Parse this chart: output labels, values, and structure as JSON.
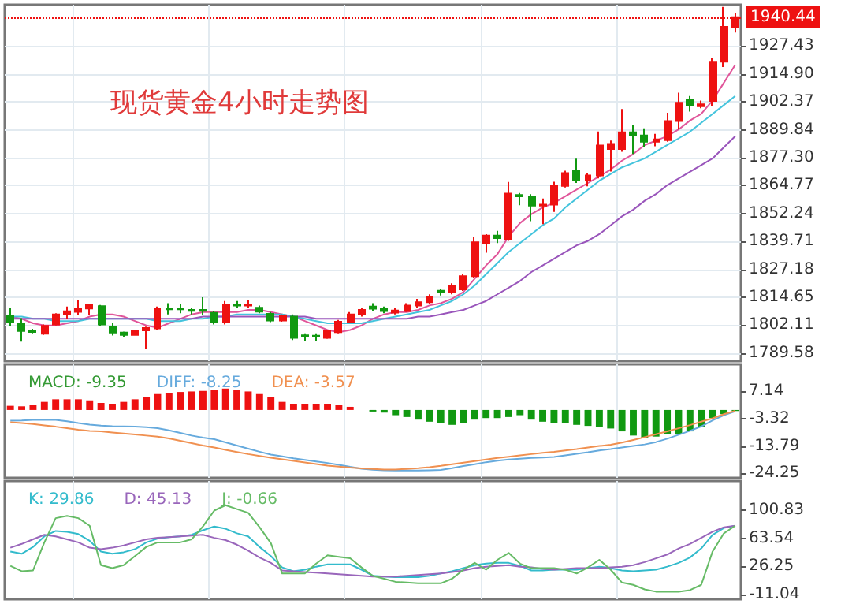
{
  "chart_data": [
    {
      "type": "candlestick",
      "title": "现货黄金4小时走势图",
      "categories": [
        null,
        null,
        null,
        null,
        null,
        null,
        null,
        null,
        null,
        null,
        null,
        null,
        null,
        null,
        null,
        null,
        null,
        null,
        null,
        null,
        null,
        null,
        null,
        null,
        null,
        null,
        null,
        null,
        null,
        null,
        null,
        null,
        null,
        null,
        null,
        null,
        null,
        null,
        null,
        null,
        null,
        null,
        null,
        null,
        null,
        null,
        null,
        null,
        null,
        null,
        null,
        null,
        null,
        null,
        null,
        null,
        null,
        null,
        null,
        null,
        null,
        null,
        null,
        null,
        null
      ],
      "ohlc": [
        [
          1806.5,
          1810.0,
          1801.8,
          1803.7
        ],
        [
          1803.0,
          1805.3,
          1794.8,
          1799.5
        ],
        [
          1799.7,
          1800.5,
          1798.5,
          1799.1
        ],
        [
          1798.3,
          1802.5,
          1797.8,
          1801.8
        ],
        [
          1802.5,
          1807.5,
          1802.0,
          1807.0
        ],
        [
          1807.0,
          1810.5,
          1805.0,
          1808.4
        ],
        [
          1808.1,
          1813.5,
          1806.5,
          1809.6
        ],
        [
          1809.6,
          1811.7,
          1806.5,
          1811.2
        ],
        [
          1810.7,
          1811.2,
          1801.8,
          1802.5
        ],
        [
          1801.3,
          1803.0,
          1797.5,
          1798.8
        ],
        [
          1798.8,
          1799.3,
          1797.0,
          1797.8
        ],
        [
          1797.8,
          1800.0,
          1797.5,
          1799.5
        ],
        [
          1799.8,
          1801.5,
          1791.3,
          1800.9
        ],
        [
          1800.7,
          1810.5,
          1800.0,
          1809.4
        ],
        [
          1809.6,
          1812.0,
          1807.0,
          1809.3
        ],
        [
          1809.5,
          1811.5,
          1807.5,
          1809.3
        ],
        [
          1809.0,
          1810.0,
          1807.0,
          1808.6
        ],
        [
          1809.0,
          1814.7,
          1806.5,
          1808.6
        ],
        [
          1807.7,
          1808.5,
          1802.5,
          1803.7
        ],
        [
          1803.7,
          1813.0,
          1802.5,
          1811.2
        ],
        [
          1811.5,
          1813.0,
          1810.0,
          1811.0
        ],
        [
          1811.0,
          1813.5,
          1810.0,
          1811.3
        ],
        [
          1810.0,
          1811.0,
          1807.5,
          1808.2
        ],
        [
          1807.2,
          1808.0,
          1803.5,
          1804.2
        ],
        [
          1804.2,
          1807.0,
          1803.7,
          1806.5
        ],
        [
          1806.0,
          1807.0,
          1795.5,
          1796.4
        ],
        [
          1797.6,
          1798.5,
          1795.0,
          1797.2
        ],
        [
          1797.4,
          1798.5,
          1795.0,
          1797.2
        ],
        [
          1796.4,
          1800.0,
          1796.0,
          1799.5
        ],
        [
          1799.0,
          1804.5,
          1798.5,
          1803.7
        ],
        [
          1803.7,
          1808.0,
          1803.0,
          1807.0
        ],
        [
          1807.0,
          1810.0,
          1806.0,
          1809.0
        ],
        [
          1810.5,
          1812.0,
          1808.5,
          1809.5
        ],
        [
          1809.5,
          1810.5,
          1807.5,
          1808.5
        ],
        [
          1807.8,
          1810.0,
          1807.0,
          1808.7
        ],
        [
          1808.5,
          1812.0,
          1808.0,
          1811.0
        ],
        [
          1811.0,
          1814.0,
          1810.0,
          1812.5
        ],
        [
          1812.5,
          1816.0,
          1811.5,
          1815.0
        ],
        [
          1817.6,
          1818.5,
          1815.5,
          1816.8
        ],
        [
          1817.0,
          1821.0,
          1816.0,
          1820.0
        ],
        [
          1818.2,
          1825.0,
          1817.5,
          1824.1
        ],
        [
          1824.1,
          1841.7,
          1823.5,
          1839.4
        ],
        [
          1838.9,
          1843.0,
          1834.7,
          1842.4
        ],
        [
          1842.4,
          1844.5,
          1839.0,
          1841.2
        ],
        [
          1840.6,
          1866.4,
          1840.0,
          1861.2
        ],
        [
          1860.6,
          1861.5,
          1856.0,
          1860.0
        ],
        [
          1860.0,
          1861.0,
          1848.8,
          1855.8
        ],
        [
          1855.8,
          1859.0,
          1847.5,
          1856.3
        ],
        [
          1856.3,
          1866.5,
          1853.0,
          1864.7
        ],
        [
          1864.7,
          1871.5,
          1864.0,
          1870.4
        ],
        [
          1871.5,
          1876.9,
          1866.0,
          1867.1
        ],
        [
          1867.1,
          1870.5,
          1864.5,
          1869.4
        ],
        [
          1869.4,
          1889.1,
          1868.0,
          1882.8
        ],
        [
          1881.2,
          1885.0,
          1871.1,
          1883.5
        ],
        [
          1881.2,
          1899.2,
          1880.0,
          1888.7
        ],
        [
          1888.7,
          1892.0,
          1879.0,
          1887.3
        ],
        [
          1887.3,
          1890.5,
          1882.0,
          1884.5
        ],
        [
          1884.5,
          1888.0,
          1882.5,
          1885.6
        ],
        [
          1885.2,
          1897.5,
          1884.5,
          1893.8
        ],
        [
          1893.8,
          1906.5,
          1890.0,
          1902.0
        ],
        [
          1903.2,
          1905.0,
          1898.0,
          1900.9
        ],
        [
          1900.4,
          1903.0,
          1899.5,
          1901.3
        ],
        [
          1902.8,
          1922.0,
          1900.5,
          1920.4
        ],
        [
          1920.4,
          1945.0,
          1918.0,
          1936.1
        ],
        [
          1936.1,
          1942.5,
          1933.5,
          1940.44
        ]
      ],
      "colors": [
        "#119911",
        "#119911",
        "#119911",
        "#ee1111",
        "#ee1111",
        "#ee1111",
        "#ee1111",
        "#ee1111",
        "#119911",
        "#119911",
        "#119911",
        "#ee1111",
        "#ee1111",
        "#ee1111",
        "#119911",
        "#119911",
        "#119911",
        "#119911",
        "#119911",
        "#ee1111",
        "#119911",
        "#ee1111",
        "#119911",
        "#119911",
        "#ee1111",
        "#119911",
        "#119911",
        "#119911",
        "#ee1111",
        "#ee1111",
        "#ee1111",
        "#ee1111",
        "#119911",
        "#119911",
        "#ee1111",
        "#ee1111",
        "#ee1111",
        "#ee1111",
        "#119911",
        "#ee1111",
        "#ee1111",
        "#ee1111",
        "#ee1111",
        "#119911",
        "#ee1111",
        "#119911",
        "#119911",
        "#ee1111",
        "#ee1111",
        "#ee1111",
        "#119911",
        "#ee1111",
        "#ee1111",
        "#ee1111",
        "#ee1111",
        "#119911",
        "#119911",
        "#ee1111",
        "#ee1111",
        "#ee1111",
        "#119911",
        "#ee1111",
        "#ee1111",
        "#ee1111",
        "#ee1111"
      ],
      "series": [
        {
          "type": "line",
          "color": "#e0559a",
          "values": [
            1806,
            1805,
            1803,
            1802,
            1802,
            1803,
            1804,
            1806,
            1807,
            1807,
            1806,
            1804,
            1802,
            1801,
            1803,
            1805,
            1807,
            1808,
            1808,
            1808,
            1808,
            1809,
            1809,
            1808,
            1807,
            1806,
            1804,
            1802,
            1800,
            1799,
            1800,
            1802,
            1805,
            1807,
            1808,
            1808,
            1809,
            1811,
            1812,
            1814,
            1817,
            1823,
            1829,
            1834,
            1842,
            1848,
            1852,
            1855,
            1857,
            1860,
            1863,
            1866,
            1869,
            1872,
            1876,
            1879,
            1883,
            1885,
            1887,
            1890,
            1894,
            1897,
            1903,
            1911,
            1919
          ]
        },
        {
          "type": "line",
          "color": "#44c4dd",
          "values": [
            1806,
            1806,
            1805,
            1805,
            1804,
            1804,
            1804,
            1805,
            1805,
            1805,
            1805,
            1805,
            1805,
            1804,
            1804,
            1804,
            1805,
            1805,
            1806,
            1806,
            1807,
            1807,
            1807,
            1807,
            1807,
            1806,
            1805,
            1804,
            1803,
            1803,
            1803,
            1803,
            1804,
            1805,
            1806,
            1807,
            1808,
            1809,
            1811,
            1813,
            1816,
            1820,
            1825,
            1830,
            1835,
            1839,
            1843,
            1847,
            1850,
            1855,
            1859,
            1863,
            1867,
            1870,
            1873,
            1875,
            1877,
            1880,
            1883,
            1886,
            1889,
            1893,
            1897,
            1901,
            1905
          ]
        },
        {
          "type": "line",
          "color": "#9955bb",
          "values": [
            1805,
            1805,
            1805,
            1805,
            1805,
            1805,
            1805,
            1805,
            1805,
            1805,
            1805,
            1805,
            1805,
            1805,
            1805,
            1805,
            1805,
            1806,
            1806,
            1806,
            1806,
            1806,
            1806,
            1806,
            1806,
            1806,
            1806,
            1805,
            1805,
            1805,
            1805,
            1805,
            1805,
            1805,
            1805,
            1805,
            1806,
            1806,
            1807,
            1808,
            1809,
            1811,
            1813,
            1816,
            1819,
            1822,
            1826,
            1829,
            1832,
            1835,
            1838,
            1840,
            1843,
            1847,
            1851,
            1854,
            1858,
            1861,
            1865,
            1868,
            1871,
            1874,
            1877,
            1882,
            1887
          ]
        }
      ],
      "ylim": [
        1786,
        1946
      ],
      "yticks": [
        {
          "value": 1789.58,
          "label": "1789.58"
        },
        {
          "value": 1802.11,
          "label": "1802.11"
        },
        {
          "value": 1814.65,
          "label": "1814.65"
        },
        {
          "value": 1827.18,
          "label": "1827.18"
        },
        {
          "value": 1839.71,
          "label": "1839.71"
        },
        {
          "value": 1852.24,
          "label": "1852.24"
        },
        {
          "value": 1864.77,
          "label": "1864.77"
        },
        {
          "value": 1877.3,
          "label": "1877.30"
        },
        {
          "value": 1889.84,
          "label": "1889.84"
        },
        {
          "value": 1902.37,
          "label": "1902.37"
        },
        {
          "value": 1914.9,
          "label": "1914.90"
        },
        {
          "value": 1927.43,
          "label": "1927.43"
        }
      ],
      "ref_lines": [
        {
          "axis": "y",
          "value": 1940.44,
          "label": "1940.44",
          "color": "#ee1111",
          "line_style": "dotted"
        }
      ],
      "grid": true,
      "tick_labels": "y"
    },
    {
      "type": "bar",
      "categories": [
        null,
        null,
        null,
        null,
        null,
        null,
        null,
        null,
        null,
        null,
        null,
        null,
        null,
        null,
        null,
        null,
        null,
        null,
        null,
        null,
        null,
        null,
        null,
        null,
        null,
        null,
        null,
        null,
        null,
        null,
        null,
        null,
        null,
        null,
        null,
        null,
        null,
        null,
        null,
        null,
        null,
        null,
        null,
        null,
        null,
        null,
        null,
        null,
        null,
        null,
        null,
        null,
        null,
        null,
        null,
        null,
        null,
        null,
        null,
        null,
        null,
        null,
        null,
        null,
        null
      ],
      "series": [
        {
          "name": "MACD: -9.35",
          "type": "bar",
          "color": "#339933",
          "colors": [
            "#ee1111",
            "#ee1111",
            "#ee1111",
            "#ee1111",
            "#ee1111",
            "#ee1111",
            "#ee1111",
            "#ee1111",
            "#ee1111",
            "#ee1111",
            "#ee1111",
            "#ee1111",
            "#ee1111",
            "#ee1111",
            "#ee1111",
            "#ee1111",
            "#ee1111",
            "#ee1111",
            "#ee1111",
            "#ee1111",
            "#ee1111",
            "#ee1111",
            "#ee1111",
            "#ee1111",
            "#ee1111",
            "#ee1111",
            "#ee1111",
            "#ee1111",
            "#ee1111",
            "#ee1111",
            "#ee1111",
            "#ee1111",
            "#119911",
            "#119911",
            "#119911",
            "#119911",
            "#119911",
            "#119911",
            "#119911",
            "#119911",
            "#119911",
            "#119911",
            "#119911",
            "#119911",
            "#119911",
            "#119911",
            "#119911",
            "#119911",
            "#119911",
            "#119911",
            "#119911",
            "#119911",
            "#119911",
            "#119911",
            "#119911",
            "#119911",
            "#119911",
            "#119911",
            "#119911",
            "#119911",
            "#119911",
            "#119911",
            "#119911",
            "#119911",
            "#119911"
          ],
          "values": [
            1.6,
            1.4,
            2.0,
            3.1,
            4.1,
            4.1,
            4.1,
            3.7,
            2.7,
            2.4,
            3.1,
            4.1,
            5.1,
            6.1,
            6.5,
            6.9,
            7.1,
            7.3,
            7.8,
            8.2,
            7.8,
            7.1,
            6.1,
            5.1,
            3.1,
            2.4,
            2.4,
            2.4,
            2.4,
            2.0,
            1.2,
            null,
            -0.6,
            -1.0,
            -2.0,
            -2.7,
            -3.7,
            -4.5,
            -5.1,
            -5.7,
            -5.1,
            -3.7,
            -3.1,
            -3.1,
            -2.7,
            -2.0,
            -3.7,
            -4.5,
            -5.1,
            -5.1,
            -5.7,
            -6.1,
            -6.5,
            -7.1,
            -8.2,
            -9.8,
            -10.6,
            -10.2,
            -9.2,
            -9.2,
            -8.2,
            -6.5,
            -3.1,
            -1.6,
            -0.4
          ]
        },
        {
          "name": "DIFF: -8.25",
          "type": "line",
          "color": "#66aadd",
          "values": [
            -4.1,
            -4.0,
            -3.8,
            -3.7,
            -3.8,
            -4.3,
            -5.0,
            -5.6,
            -6.0,
            -6.2,
            -6.3,
            -6.4,
            -6.6,
            -7.0,
            -7.8,
            -8.8,
            -9.8,
            -10.6,
            -11.2,
            -12.4,
            -13.6,
            -14.8,
            -16.0,
            -17.1,
            -17.8,
            -18.5,
            -19.1,
            -19.7,
            -20.3,
            -21.0,
            -21.8,
            -22.5,
            -22.9,
            -23.1,
            -23.2,
            -23.2,
            -23.2,
            -23.1,
            -23.0,
            -22.3,
            -21.5,
            -20.8,
            -20.0,
            -19.4,
            -19.0,
            -18.7,
            -18.4,
            -18.2,
            -18.0,
            -17.4,
            -16.8,
            -16.2,
            -15.5,
            -15.0,
            -14.4,
            -13.8,
            -13.2,
            -12.3,
            -11.0,
            -9.5,
            -8.0,
            -6.3,
            -4.0,
            -2.0,
            -0.5
          ]
        },
        {
          "name": "DEA: -3.57",
          "type": "line",
          "color": "#f09050",
          "values": [
            -4.7,
            -5.0,
            -5.4,
            -5.9,
            -6.4,
            -7.0,
            -7.6,
            -8.0,
            -8.2,
            -8.6,
            -9.0,
            -9.4,
            -9.8,
            -10.2,
            -10.9,
            -11.8,
            -12.7,
            -13.6,
            -14.4,
            -15.3,
            -16.1,
            -16.9,
            -17.6,
            -18.3,
            -18.9,
            -19.5,
            -20.1,
            -20.7,
            -21.3,
            -21.7,
            -22.1,
            -22.4,
            -22.6,
            -22.8,
            -22.8,
            -22.6,
            -22.3,
            -21.9,
            -21.4,
            -20.8,
            -20.2,
            -19.6,
            -19.0,
            -18.4,
            -17.9,
            -17.4,
            -16.9,
            -16.4,
            -16.0,
            -15.5,
            -15.0,
            -14.4,
            -13.8,
            -13.3,
            -12.5,
            -11.5,
            -10.4,
            -9.3,
            -8.2,
            -7.0,
            -5.8,
            -4.5,
            -3.2,
            -1.6,
            -0.3
          ]
        }
      ],
      "ylim": [
        -26,
        17.5
      ],
      "yticks": [
        7.14,
        -3.32,
        -13.79,
        -24.25
      ],
      "grid": "x",
      "legend": "top left",
      "tick_labels": "y"
    },
    {
      "type": "line",
      "categories": [
        null,
        null,
        null,
        null,
        null,
        null,
        null,
        null,
        null,
        null,
        null,
        null,
        null,
        null,
        null,
        null,
        null,
        null,
        null,
        null,
        null,
        null,
        null,
        null,
        null,
        null,
        null,
        null,
        null,
        null,
        null,
        null,
        null,
        null,
        null,
        null,
        null,
        null,
        null,
        null,
        null,
        null,
        null,
        null,
        null,
        null,
        null,
        null,
        null,
        null,
        null,
        null,
        null,
        null,
        null,
        null,
        null,
        null,
        null,
        null,
        null,
        null,
        null,
        null,
        null
      ],
      "series": [
        {
          "name": "K: 29.86",
          "color": "#33bbcc",
          "values": [
            46,
            43,
            52,
            66,
            73,
            72,
            69,
            60,
            46,
            43,
            45,
            49,
            58,
            63,
            65,
            66,
            68,
            74,
            79,
            76,
            70,
            66,
            52,
            40,
            25,
            20,
            22,
            26,
            29,
            29,
            29,
            22,
            14,
            13,
            12,
            12,
            12,
            14,
            17,
            20,
            24,
            28,
            30,
            31,
            31,
            27,
            21,
            21,
            22,
            22,
            22,
            24,
            26,
            24,
            21,
            20,
            21,
            22,
            26,
            31,
            38,
            50,
            68,
            77,
            80
          ]
        },
        {
          "name": "D: 45.13",
          "color": "#9966bb",
          "values": [
            51,
            56,
            62,
            68,
            66,
            62,
            58,
            51,
            49,
            51,
            54,
            58,
            62,
            64,
            65,
            66,
            67,
            68,
            64,
            61,
            55,
            47,
            38,
            31,
            21,
            20,
            19,
            18,
            17,
            16,
            15,
            14,
            13,
            13,
            13,
            14,
            15,
            16,
            17,
            19,
            21,
            24,
            26,
            27,
            28,
            26,
            25,
            23,
            22,
            23,
            24,
            24,
            24,
            25,
            26,
            28,
            32,
            37,
            42,
            50,
            56,
            64,
            72,
            78,
            80
          ]
        },
        {
          "name": "J: -0.66",
          "color": "#66bb66",
          "values": [
            27,
            20,
            21,
            58,
            90,
            93,
            90,
            80,
            28,
            24,
            28,
            40,
            52,
            58,
            58,
            58,
            62,
            79,
            100,
            107,
            102,
            97,
            78,
            57,
            17,
            17,
            17,
            30,
            41,
            39,
            37,
            25,
            14,
            10,
            6,
            5,
            4,
            4,
            4,
            10,
            22,
            31,
            22,
            35,
            44,
            30,
            24,
            24,
            24,
            22,
            17,
            25,
            35,
            22,
            5,
            2,
            -4,
            -7,
            -7,
            -7,
            -5,
            2,
            46,
            70,
            80
          ]
        }
      ],
      "ylim": [
        -17,
        139
      ],
      "yticks": [
        100.83,
        63.54,
        26.25,
        -11.04
      ],
      "grid": "x",
      "legend": "top left",
      "tick_labels": "y"
    }
  ]
}
